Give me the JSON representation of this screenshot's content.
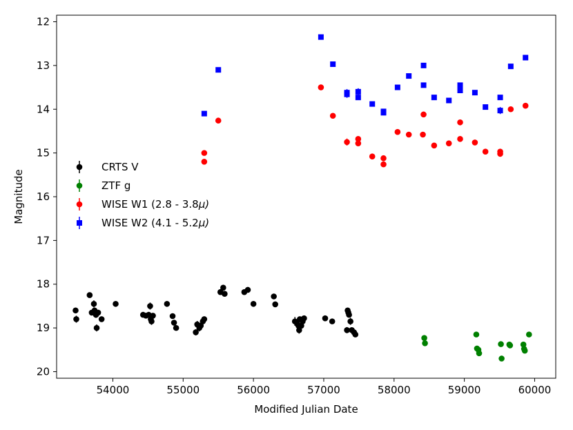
{
  "chart_data": {
    "type": "scatter",
    "title": "",
    "xlabel": "Modified Julian Date",
    "ylabel": "Magnitude",
    "xlim": [
      53200,
      60300
    ],
    "ylim": [
      20.15,
      11.85
    ],
    "y_inverted": true,
    "xticks": [
      54000,
      55000,
      56000,
      57000,
      58000,
      59000,
      60000
    ],
    "yticks": [
      12,
      13,
      14,
      15,
      16,
      17,
      18,
      19,
      20
    ],
    "legend_position": "center-left",
    "series": [
      {
        "name": "CRTS V",
        "label_main": "CRTS V",
        "label_unit": "",
        "color": "#000000",
        "marker": "circle",
        "points": [
          [
            53470,
            18.6,
            0.05
          ],
          [
            53480,
            18.8,
            0.08
          ],
          [
            53670,
            18.25,
            0.05
          ],
          [
            53700,
            18.65,
            0.06
          ],
          [
            53730,
            18.45,
            0.08
          ],
          [
            53740,
            18.6,
            0.06
          ],
          [
            53760,
            18.7,
            0.07
          ],
          [
            53770,
            19.0,
            0.08
          ],
          [
            53790,
            18.65,
            0.06
          ],
          [
            53840,
            18.8,
            0.06
          ],
          [
            54040,
            18.45,
            0.05
          ],
          [
            54430,
            18.7,
            0.05
          ],
          [
            54470,
            18.72,
            0.05
          ],
          [
            54510,
            18.7,
            0.06
          ],
          [
            54530,
            18.5,
            0.08
          ],
          [
            54540,
            18.8,
            0.07
          ],
          [
            54550,
            18.85,
            0.08
          ],
          [
            54570,
            18.72,
            0.06
          ],
          [
            54770,
            18.45,
            0.05
          ],
          [
            54850,
            18.73,
            0.06
          ],
          [
            54870,
            18.88,
            0.06
          ],
          [
            54900,
            19.0,
            0.06
          ],
          [
            55180,
            19.1,
            0.07
          ],
          [
            55200,
            18.92,
            0.08
          ],
          [
            55230,
            19.0,
            0.08
          ],
          [
            55250,
            18.95,
            0.06
          ],
          [
            55280,
            18.85,
            0.06
          ],
          [
            55300,
            18.8,
            0.05
          ],
          [
            55530,
            18.18,
            0.05
          ],
          [
            55570,
            18.08,
            0.05
          ],
          [
            55590,
            18.22,
            0.05
          ],
          [
            55870,
            18.18,
            0.05
          ],
          [
            55920,
            18.13,
            0.05
          ],
          [
            56000,
            18.45,
            0.05
          ],
          [
            56290,
            18.28,
            0.05
          ],
          [
            56310,
            18.46,
            0.05
          ],
          [
            56590,
            18.85,
            0.1
          ],
          [
            56620,
            18.9,
            0.08
          ],
          [
            56640,
            18.95,
            0.08
          ],
          [
            56650,
            19.05,
            0.08
          ],
          [
            56660,
            18.8,
            0.06
          ],
          [
            56680,
            18.95,
            0.06
          ],
          [
            56700,
            18.85,
            0.06
          ],
          [
            56720,
            18.78,
            0.05
          ],
          [
            57020,
            18.78,
            0.06
          ],
          [
            57120,
            18.85,
            0.06
          ],
          [
            57330,
            19.05,
            0.07
          ],
          [
            57340,
            18.6,
            0.05
          ],
          [
            57350,
            18.65,
            0.05
          ],
          [
            57360,
            18.7,
            0.06
          ],
          [
            57380,
            18.85,
            0.08
          ],
          [
            57400,
            19.05,
            0.06
          ],
          [
            57430,
            19.1,
            0.06
          ],
          [
            57450,
            19.15,
            0.06
          ]
        ]
      },
      {
        "name": "ZTF g",
        "label_main": "ZTF g",
        "label_unit": "",
        "color": "#008000",
        "marker": "circle",
        "points": [
          [
            58430,
            19.23,
            0.03
          ],
          [
            58440,
            19.35,
            0.03
          ],
          [
            59170,
            19.15,
            0.03
          ],
          [
            59180,
            19.47,
            0.04
          ],
          [
            59200,
            19.5,
            0.04
          ],
          [
            59210,
            19.58,
            0.04
          ],
          [
            59520,
            19.37,
            0.03
          ],
          [
            59530,
            19.7,
            0.05
          ],
          [
            59640,
            19.38,
            0.03
          ],
          [
            59650,
            19.4,
            0.03
          ],
          [
            59840,
            19.38,
            0.03
          ],
          [
            59850,
            19.48,
            0.04
          ],
          [
            59860,
            19.52,
            0.04
          ],
          [
            59920,
            19.15,
            0.03
          ]
        ]
      },
      {
        "name": "WISE W1 (2.8 - 3.8μ)",
        "label_main": "WISE W1 (2.8 - 3.8",
        "label_unit": "μ)",
        "color": "#ff0000",
        "marker": "circle",
        "points": [
          [
            55300,
            15.0,
            0.03
          ],
          [
            55300,
            15.2,
            0.03
          ],
          [
            55500,
            14.26,
            0.03
          ],
          [
            56960,
            13.5,
            0.03
          ],
          [
            57130,
            14.15,
            0.03
          ],
          [
            57330,
            14.75,
            0.08
          ],
          [
            57490,
            14.68,
            0.05
          ],
          [
            57490,
            14.78,
            0.05
          ],
          [
            57690,
            15.08,
            0.03
          ],
          [
            57850,
            15.12,
            0.03
          ],
          [
            57850,
            15.26,
            0.03
          ],
          [
            58050,
            14.52,
            0.03
          ],
          [
            58210,
            14.58,
            0.03
          ],
          [
            58410,
            14.58,
            0.03
          ],
          [
            58420,
            14.12,
            0.03
          ],
          [
            58570,
            14.83,
            0.03
          ],
          [
            58780,
            14.78,
            0.03
          ],
          [
            58940,
            14.3,
            0.03
          ],
          [
            58940,
            14.68,
            0.03
          ],
          [
            59150,
            14.76,
            0.03
          ],
          [
            59300,
            14.97,
            0.03
          ],
          [
            59510,
            14.97,
            0.03
          ],
          [
            59510,
            15.02,
            0.03
          ],
          [
            59660,
            14.0,
            0.03
          ],
          [
            59870,
            13.92,
            0.03
          ]
        ]
      },
      {
        "name": "WISE W2 (4.1 - 5.2μ)",
        "label_main": "WISE W2 (4.1 - 5.2",
        "label_unit": "μ)",
        "color": "#0000ff",
        "marker": "square",
        "points": [
          [
            55300,
            14.1,
            0.03
          ],
          [
            55500,
            13.1,
            0.03
          ],
          [
            56960,
            12.35,
            0.03
          ],
          [
            57130,
            12.97,
            0.03
          ],
          [
            57330,
            13.62,
            0.08
          ],
          [
            57330,
            13.66,
            0.08
          ],
          [
            57490,
            13.6,
            0.08
          ],
          [
            57490,
            13.73,
            0.05
          ],
          [
            57690,
            13.88,
            0.03
          ],
          [
            57850,
            14.05,
            0.03
          ],
          [
            57850,
            14.08,
            0.03
          ],
          [
            58050,
            13.5,
            0.03
          ],
          [
            58210,
            13.24,
            0.03
          ],
          [
            58420,
            13.0,
            0.03
          ],
          [
            58420,
            13.45,
            0.03
          ],
          [
            58570,
            13.73,
            0.03
          ],
          [
            58780,
            13.8,
            0.03
          ],
          [
            58940,
            13.45,
            0.03
          ],
          [
            58940,
            13.57,
            0.03
          ],
          [
            59150,
            13.62,
            0.03
          ],
          [
            59300,
            13.95,
            0.03
          ],
          [
            59510,
            13.73,
            0.03
          ],
          [
            59510,
            14.03,
            0.08
          ],
          [
            59660,
            13.02,
            0.03
          ],
          [
            59870,
            12.82,
            0.03
          ]
        ]
      }
    ]
  }
}
